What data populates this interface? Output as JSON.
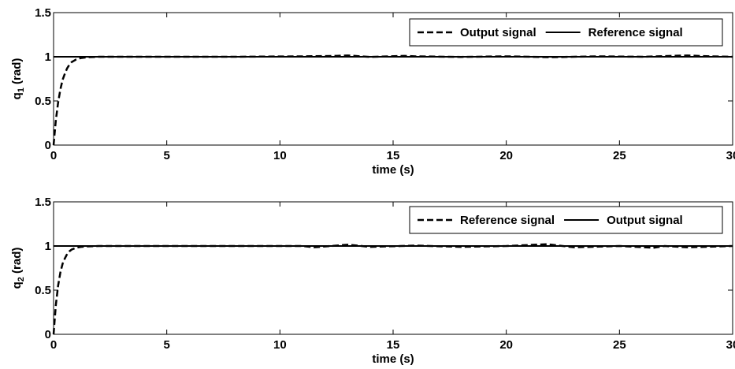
{
  "chart_data": [
    {
      "type": "line",
      "xlabel": "time (s)",
      "ylabel": "q1 (rad)",
      "ylabel_main": "q",
      "ylabel_sub": "1",
      "ylabel_suffix": " (rad)",
      "xlim": [
        0,
        30
      ],
      "ylim": [
        0,
        1.5
      ],
      "xticks": [
        0,
        5,
        10,
        15,
        20,
        25,
        30
      ],
      "yticks": [
        0,
        0.5,
        1,
        1.5
      ],
      "xtick_labels": [
        "0",
        "5",
        "10",
        "15",
        "20",
        "25",
        "30"
      ],
      "ytick_labels": [
        "0",
        "0.5",
        "1",
        "1.5"
      ],
      "grid": false,
      "legend_position": "top-right",
      "series": [
        {
          "name": "Output signal",
          "style": "dashed",
          "color": "#000000",
          "x": [
            0,
            0.1,
            0.2,
            0.3,
            0.4,
            0.5,
            0.6,
            0.7,
            0.8,
            1.0,
            1.2,
            1.5,
            2.0,
            3,
            5,
            8,
            11,
            12.5,
            13,
            14,
            15.5,
            16,
            18,
            20,
            22,
            24,
            26,
            28,
            29,
            30
          ],
          "y": [
            0,
            0.28,
            0.48,
            0.63,
            0.74,
            0.81,
            0.87,
            0.91,
            0.94,
            0.97,
            0.985,
            0.995,
            1.0,
            1.0,
            1.0,
            1.0,
            1.005,
            1.01,
            1.015,
            0.998,
            1.01,
            1.005,
            0.998,
            1.005,
            0.995,
            1.005,
            1.0,
            1.015,
            1.005,
            1.0
          ]
        },
        {
          "name": "Reference signal",
          "style": "solid",
          "color": "#000000",
          "x": [
            0,
            30
          ],
          "y": [
            1,
            1
          ]
        }
      ]
    },
    {
      "type": "line",
      "xlabel": "time (s)",
      "ylabel": "q2 (rad)",
      "ylabel_main": "q",
      "ylabel_sub": "2",
      "ylabel_suffix": " (rad)",
      "xlim": [
        0,
        30
      ],
      "ylim": [
        0,
        1.5
      ],
      "xticks": [
        0,
        5,
        10,
        15,
        20,
        25,
        30
      ],
      "yticks": [
        0,
        0.5,
        1,
        1.5
      ],
      "xtick_labels": [
        "0",
        "5",
        "10",
        "15",
        "20",
        "25",
        "30"
      ],
      "ytick_labels": [
        "0",
        "0.5",
        "1",
        "1.5"
      ],
      "grid": false,
      "legend_position": "top-right",
      "series": [
        {
          "name": "Reference signal",
          "style": "dashed",
          "color": "#000000",
          "x": [
            0,
            0.1,
            0.2,
            0.3,
            0.4,
            0.5,
            0.6,
            0.7,
            0.8,
            1.0,
            1.2,
            1.5,
            2.0,
            3,
            5,
            8,
            11,
            11.5,
            13,
            14,
            16,
            18,
            20,
            21.8,
            23,
            25,
            26.5,
            27,
            28,
            30
          ],
          "y": [
            0,
            0.33,
            0.55,
            0.7,
            0.8,
            0.86,
            0.91,
            0.94,
            0.96,
            0.98,
            0.99,
            0.995,
            1.0,
            1.0,
            1.0,
            1.0,
            1.0,
            0.985,
            1.015,
            0.99,
            1.005,
            0.99,
            1.0,
            1.02,
            0.985,
            1.0,
            0.98,
            1.0,
            0.985,
            1.0
          ]
        },
        {
          "name": "Output signal",
          "style": "solid",
          "color": "#000000",
          "x": [
            0,
            30
          ],
          "y": [
            1,
            1
          ]
        }
      ]
    }
  ]
}
